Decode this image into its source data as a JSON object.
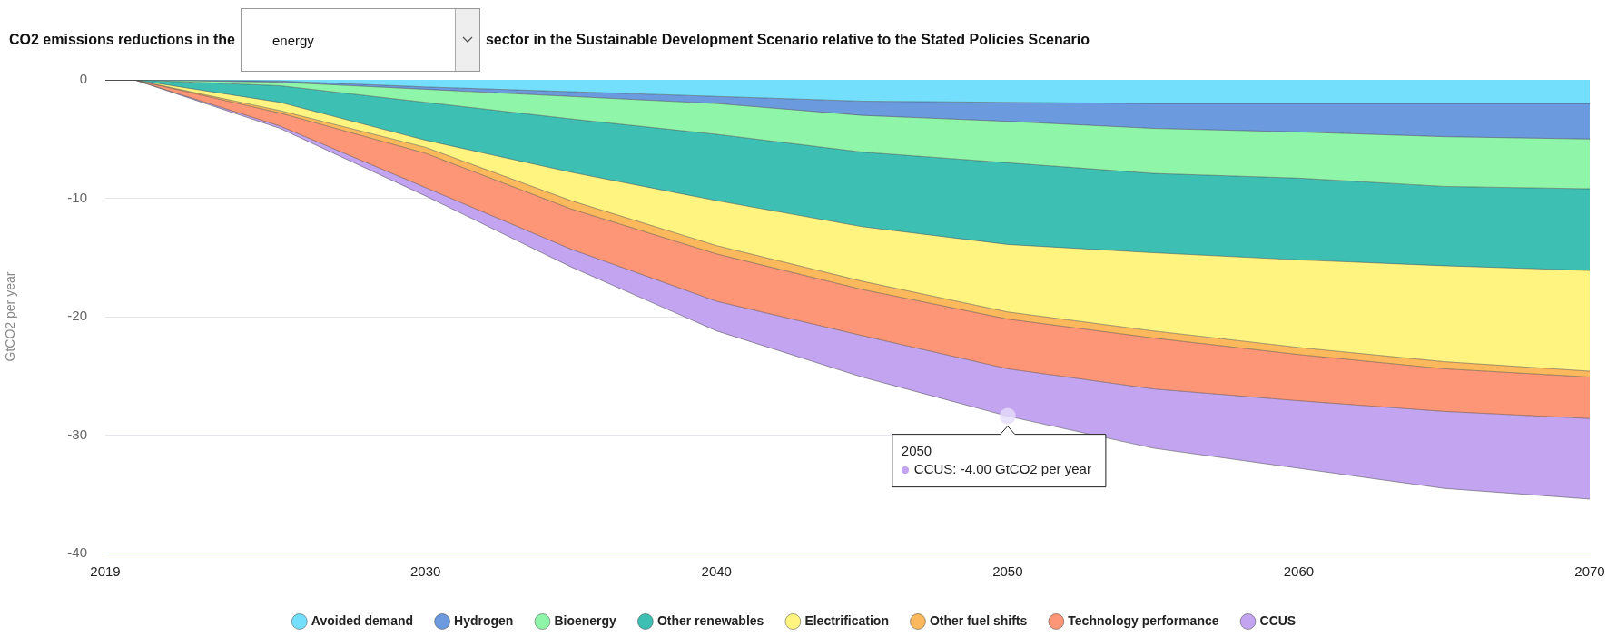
{
  "chart_data": {
    "type": "area",
    "stacked": true,
    "title": "CO2 emissions reductions in the",
    "subtitle": "sector in the Sustainable Development Scenario relative to the Stated Policies Scenario",
    "ylabel": "GtCO2 per year",
    "x": [
      2019,
      2020,
      2025,
      2030,
      2035,
      2040,
      2045,
      2050,
      2055,
      2060,
      2065,
      2070
    ],
    "xlim": [
      2019,
      2070
    ],
    "xticks": [
      2019,
      2030,
      2040,
      2050,
      2060,
      2070
    ],
    "ylim": [
      -40,
      0
    ],
    "yticks": [
      0,
      -10,
      -20,
      -30,
      -40
    ],
    "grid": "y",
    "legend": "bottom",
    "series": [
      {
        "name": "Avoided demand",
        "color": "#73dffd",
        "values": [
          0,
          0,
          -0.1,
          -0.6,
          -1.0,
          -1.4,
          -1.8,
          -1.9,
          -2.0,
          -2.0,
          -2.0,
          -2.0
        ]
      },
      {
        "name": "Hydrogen",
        "color": "#6b9ade",
        "values": [
          0,
          0,
          -0.1,
          -0.2,
          -0.4,
          -0.6,
          -1.2,
          -1.6,
          -2.1,
          -2.4,
          -2.8,
          -3.0
        ]
      },
      {
        "name": "Bioenergy",
        "color": "#8ff5a9",
        "values": [
          0,
          0,
          -0.3,
          -1.1,
          -1.9,
          -2.6,
          -3.1,
          -3.5,
          -3.8,
          -3.9,
          -4.2,
          -4.2
        ]
      },
      {
        "name": "Other renewables",
        "color": "#3dbfb4",
        "values": [
          0,
          0,
          -1.4,
          -3.2,
          -4.5,
          -5.6,
          -6.3,
          -6.9,
          -6.7,
          -6.9,
          -6.7,
          -6.9
        ]
      },
      {
        "name": "Electrification",
        "color": "#fff480",
        "values": [
          0,
          0,
          -0.7,
          -0.6,
          -2.4,
          -3.8,
          -4.6,
          -5.7,
          -6.6,
          -7.4,
          -8.1,
          -8.5
        ]
      },
      {
        "name": "Other fuel shifts",
        "color": "#fbb85c",
        "values": [
          0,
          0,
          -0.2,
          -0.5,
          -0.7,
          -0.7,
          -0.7,
          -0.6,
          -0.6,
          -0.6,
          -0.6,
          -0.5
        ]
      },
      {
        "name": "Technology performance",
        "color": "#fd9577",
        "values": [
          0,
          0,
          -1.1,
          -2.9,
          -3.4,
          -4.0,
          -3.9,
          -4.2,
          -4.3,
          -3.9,
          -3.6,
          -3.5
        ]
      },
      {
        "name": "CCUS",
        "color": "#c2a4f0",
        "values": [
          0,
          0,
          -0.2,
          -0.7,
          -1.5,
          -2.5,
          -3.5,
          -4.0,
          -5.0,
          -5.7,
          -6.5,
          -6.8
        ]
      }
    ],
    "annotations": [
      "energy",
      {
        "text": "2050\nCCUS: -4.00 GtCO2 per year",
        "x": 2050,
        "y": -28.4
      }
    ]
  }
}
